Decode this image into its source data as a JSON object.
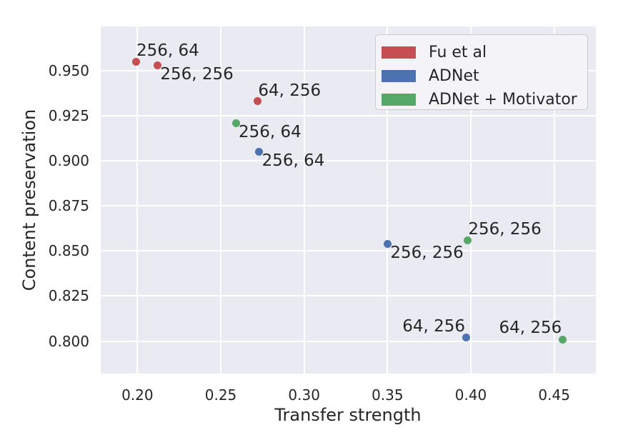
{
  "colors": {
    "figure_background": "#ffffff",
    "plot_background": "#eaeaf2",
    "gridline": "#ffffff",
    "text": "#262626",
    "series_red": "#c44e52",
    "series_blue": "#4c72b0",
    "series_green": "#55a868"
  },
  "chart_data": {
    "type": "scatter",
    "title": "",
    "xlabel": "Transfer strength",
    "ylabel": "Content preservation",
    "xlim": [
      0.178,
      0.475
    ],
    "ylim": [
      0.782,
      0.9745
    ],
    "grid": true,
    "legend_position": "upper right",
    "xticks": [
      {
        "value": 0.2,
        "label": "0.20"
      },
      {
        "value": 0.25,
        "label": "0.25"
      },
      {
        "value": 0.3,
        "label": "0.30"
      },
      {
        "value": 0.35,
        "label": "0.35"
      },
      {
        "value": 0.4,
        "label": "0.40"
      },
      {
        "value": 0.45,
        "label": "0.45"
      }
    ],
    "yticks": [
      {
        "value": 0.8,
        "label": "0.800"
      },
      {
        "value": 0.825,
        "label": "0.825"
      },
      {
        "value": 0.85,
        "label": "0.850"
      },
      {
        "value": 0.875,
        "label": "0.875"
      },
      {
        "value": 0.9,
        "label": "0.900"
      },
      {
        "value": 0.925,
        "label": "0.925"
      },
      {
        "value": 0.95,
        "label": "0.950"
      }
    ],
    "series": [
      {
        "name": "Fu et al",
        "color": "#c44e52",
        "points": [
          {
            "x": 0.199,
            "y": 0.955,
            "label": "256, 64",
            "label_side": "above-right"
          },
          {
            "x": 0.212,
            "y": 0.953,
            "label": "256, 256",
            "label_side": "below-right"
          },
          {
            "x": 0.272,
            "y": 0.933,
            "label": "64, 256",
            "label_side": "above-right"
          }
        ]
      },
      {
        "name": "ADNet",
        "color": "#4c72b0",
        "points": [
          {
            "x": 0.273,
            "y": 0.905,
            "label": "256, 64",
            "label_side": "below-right"
          },
          {
            "x": 0.35,
            "y": 0.854,
            "label": "256, 256",
            "label_side": "below-right"
          },
          {
            "x": 0.397,
            "y": 0.802,
            "label": "64, 256",
            "label_side": "above-left"
          }
        ]
      },
      {
        "name": "ADNet + Motivator",
        "color": "#55a868",
        "points": [
          {
            "x": 0.259,
            "y": 0.921,
            "label": "256, 64",
            "label_side": "below-right"
          },
          {
            "x": 0.398,
            "y": 0.856,
            "label": "256, 256",
            "label_side": "above-right"
          },
          {
            "x": 0.455,
            "y": 0.801,
            "label": "64, 256",
            "label_side": "above-left"
          }
        ]
      }
    ]
  }
}
